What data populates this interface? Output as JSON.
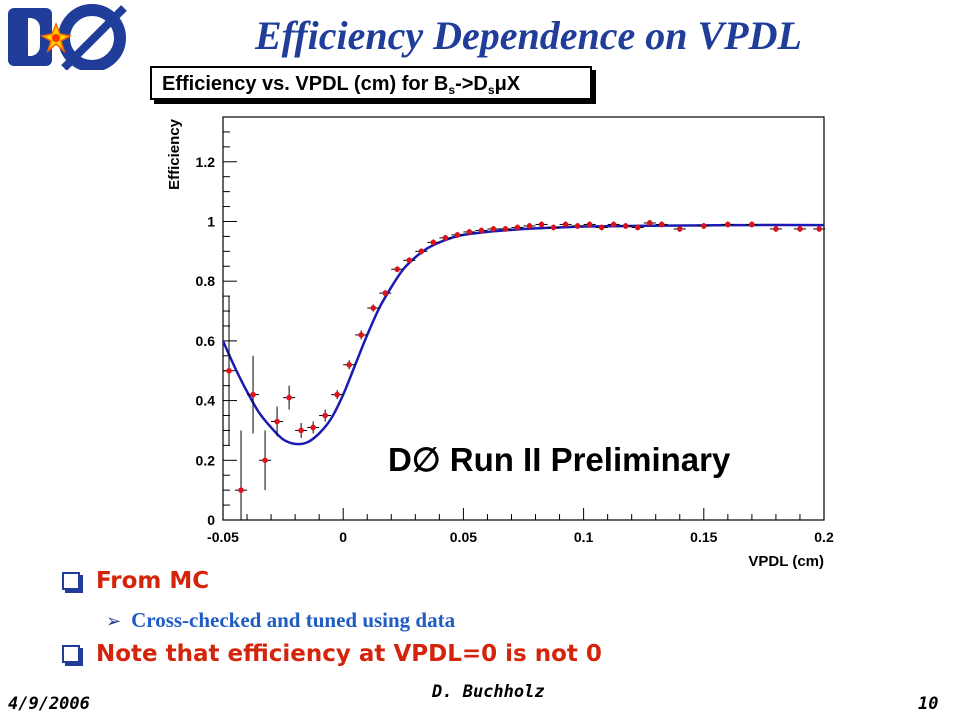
{
  "slide": {
    "title": "Efficiency Dependence on VPDL",
    "bullets": [
      {
        "text": "From MC",
        "level": 1
      },
      {
        "text": "Cross-checked and tuned using data",
        "level": 2
      },
      {
        "text": "Note that efficiency at VPDL=0 is not 0",
        "level": 1
      }
    ],
    "footer": {
      "date": "4/9/2006",
      "author": "D. Buchholz",
      "page": "10"
    }
  },
  "logo": {
    "text": "DØ",
    "icon": "dzero-logo-icon"
  },
  "plot_title": {
    "pre": "Efficiency vs. VPDL (cm) for B",
    "sub1": "s",
    "mid": "->D",
    "sub2": "s",
    "post": "μX"
  },
  "colors": {
    "title": "#1f3d99",
    "curve": "#1a1ab4",
    "points": "#e0111b",
    "bullet_red": "#d4240b",
    "bullet_blue": "#1f5cc4"
  },
  "chart_data": {
    "type": "scatter",
    "xlabel": "VPDL (cm)",
    "ylabel": "Efficiency",
    "annotation": "D∅ Run II Preliminary",
    "xlim": [
      -0.05,
      0.2
    ],
    "ylim": [
      0,
      1.35
    ],
    "xticks": [
      "-0.05",
      "0",
      "0.05",
      "0.1",
      "0.15",
      "0.2"
    ],
    "yticks": [
      "0",
      "0.2",
      "0.4",
      "0.6",
      "0.8",
      "1",
      "1.2"
    ],
    "grid": false,
    "series": [
      {
        "type": "points_with_errors",
        "points": [
          {
            "x": -0.0475,
            "y": 0.5,
            "ey": 0.25
          },
          {
            "x": -0.0425,
            "y": 0.1,
            "ey": 0.2
          },
          {
            "x": -0.0375,
            "y": 0.42,
            "ey": 0.13
          },
          {
            "x": -0.0325,
            "y": 0.2,
            "ey": 0.1
          },
          {
            "x": -0.0275,
            "y": 0.33,
            "ey": 0.05
          },
          {
            "x": -0.0225,
            "y": 0.41,
            "ey": 0.04
          },
          {
            "x": -0.0175,
            "y": 0.3,
            "ey": 0.025
          },
          {
            "x": -0.0125,
            "y": 0.31,
            "ey": 0.02
          },
          {
            "x": -0.0075,
            "y": 0.35,
            "ey": 0.02
          },
          {
            "x": -0.0025,
            "y": 0.42,
            "ey": 0.015
          },
          {
            "x": 0.0025,
            "y": 0.52,
            "ey": 0.015
          },
          {
            "x": 0.0075,
            "y": 0.62,
            "ey": 0.015
          },
          {
            "x": 0.0125,
            "y": 0.71,
            "ey": 0.012
          },
          {
            "x": 0.0175,
            "y": 0.76,
            "ey": 0.01
          },
          {
            "x": 0.0225,
            "y": 0.84,
            "ey": 0.01
          },
          {
            "x": 0.0275,
            "y": 0.87,
            "ey": 0.01
          },
          {
            "x": 0.0325,
            "y": 0.9,
            "ey": 0.01
          },
          {
            "x": 0.0375,
            "y": 0.93,
            "ey": 0.01
          },
          {
            "x": 0.0425,
            "y": 0.945,
            "ey": 0.01
          },
          {
            "x": 0.0475,
            "y": 0.955,
            "ey": 0.01
          },
          {
            "x": 0.0525,
            "y": 0.965,
            "ey": 0.01
          },
          {
            "x": 0.0575,
            "y": 0.97,
            "ey": 0.01
          },
          {
            "x": 0.0625,
            "y": 0.975,
            "ey": 0.01
          },
          {
            "x": 0.0675,
            "y": 0.975,
            "ey": 0.01
          },
          {
            "x": 0.0725,
            "y": 0.98,
            "ey": 0.01
          },
          {
            "x": 0.0775,
            "y": 0.985,
            "ey": 0.01
          },
          {
            "x": 0.0825,
            "y": 0.99,
            "ey": 0.01
          },
          {
            "x": 0.0875,
            "y": 0.98,
            "ey": 0.01
          },
          {
            "x": 0.0925,
            "y": 0.99,
            "ey": 0.01
          },
          {
            "x": 0.0975,
            "y": 0.985,
            "ey": 0.01
          },
          {
            "x": 0.1025,
            "y": 0.99,
            "ey": 0.01
          },
          {
            "x": 0.1075,
            "y": 0.98,
            "ey": 0.01
          },
          {
            "x": 0.1125,
            "y": 0.99,
            "ey": 0.01
          },
          {
            "x": 0.1175,
            "y": 0.985,
            "ey": 0.01
          },
          {
            "x": 0.1225,
            "y": 0.98,
            "ey": 0.01
          },
          {
            "x": 0.1275,
            "y": 0.995,
            "ey": 0.01
          },
          {
            "x": 0.1325,
            "y": 0.99,
            "ey": 0.01
          },
          {
            "x": 0.14,
            "y": 0.975,
            "ey": 0.01
          },
          {
            "x": 0.15,
            "y": 0.985,
            "ey": 0.01
          },
          {
            "x": 0.16,
            "y": 0.99,
            "ey": 0.01
          },
          {
            "x": 0.17,
            "y": 0.99,
            "ey": 0.01
          },
          {
            "x": 0.18,
            "y": 0.975,
            "ey": 0.01
          },
          {
            "x": 0.19,
            "y": 0.975,
            "ey": 0.01
          },
          {
            "x": 0.198,
            "y": 0.975,
            "ey": 0.01
          }
        ]
      },
      {
        "type": "fit_curve",
        "x": [
          -0.05,
          -0.045,
          -0.04,
          -0.035,
          -0.03,
          -0.025,
          -0.02,
          -0.015,
          -0.01,
          -0.005,
          0,
          0.005,
          0.01,
          0.015,
          0.02,
          0.025,
          0.03,
          0.035,
          0.04,
          0.045,
          0.05,
          0.06,
          0.07,
          0.08,
          0.09,
          0.1,
          0.12,
          0.15,
          0.17,
          0.2
        ],
        "y": [
          0.6,
          0.51,
          0.43,
          0.36,
          0.31,
          0.27,
          0.255,
          0.26,
          0.29,
          0.34,
          0.42,
          0.52,
          0.62,
          0.71,
          0.78,
          0.84,
          0.88,
          0.91,
          0.93,
          0.945,
          0.955,
          0.965,
          0.972,
          0.977,
          0.98,
          0.983,
          0.985,
          0.987,
          0.988,
          0.988
        ]
      }
    ]
  }
}
